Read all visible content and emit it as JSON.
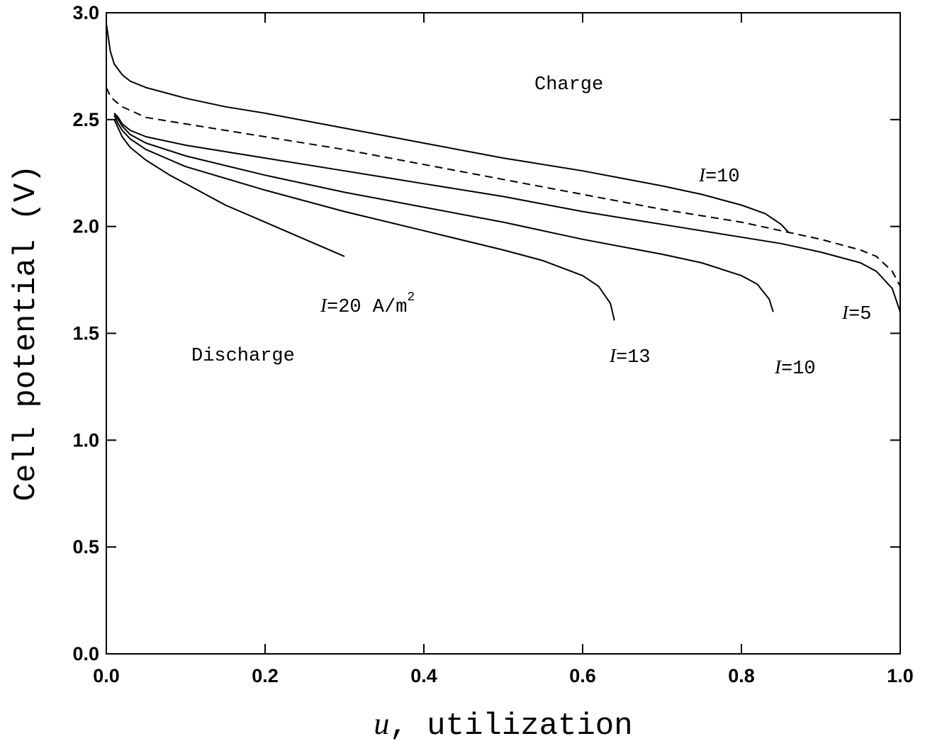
{
  "chart_data": {
    "type": "line",
    "title": "",
    "xlabel_var": "u",
    "xlabel_text": ", utilization",
    "ylabel": "Cell potential (V)",
    "xlim": [
      0.0,
      1.0
    ],
    "ylim": [
      0.0,
      3.0
    ],
    "xticks": [
      "0.0",
      "0.2",
      "0.4",
      "0.6",
      "0.8",
      "1.0"
    ],
    "yticks": [
      "0.0",
      "0.5",
      "1.0",
      "1.5",
      "2.0",
      "2.5",
      "3.0"
    ],
    "grid": false,
    "series": [
      {
        "mode": "charge",
        "current": 10,
        "dashed": false,
        "x": [
          0.0,
          0.005,
          0.01,
          0.02,
          0.03,
          0.05,
          0.08,
          0.1,
          0.15,
          0.2,
          0.3,
          0.4,
          0.5,
          0.6,
          0.7,
          0.75,
          0.8,
          0.83,
          0.85,
          0.86
        ],
        "y": [
          2.95,
          2.82,
          2.76,
          2.71,
          2.68,
          2.65,
          2.62,
          2.6,
          2.56,
          2.53,
          2.46,
          2.39,
          2.32,
          2.26,
          2.19,
          2.15,
          2.1,
          2.06,
          2.01,
          1.97
        ]
      },
      {
        "mode": "equilibrium",
        "current": null,
        "dashed": true,
        "x": [
          0.0,
          0.005,
          0.01,
          0.02,
          0.05,
          0.1,
          0.2,
          0.3,
          0.4,
          0.5,
          0.6,
          0.7,
          0.8,
          0.85,
          0.9,
          0.95,
          0.97,
          0.99,
          1.0
        ],
        "y": [
          2.65,
          2.61,
          2.59,
          2.56,
          2.51,
          2.48,
          2.42,
          2.36,
          2.29,
          2.22,
          2.15,
          2.08,
          2.02,
          1.98,
          1.94,
          1.89,
          1.86,
          1.79,
          1.72
        ]
      },
      {
        "mode": "discharge",
        "current": 5,
        "dashed": false,
        "x": [
          0.01,
          0.015,
          0.02,
          0.03,
          0.05,
          0.1,
          0.2,
          0.3,
          0.4,
          0.5,
          0.6,
          0.7,
          0.8,
          0.85,
          0.9,
          0.95,
          0.97,
          0.99,
          1.0
        ],
        "y": [
          2.53,
          2.51,
          2.48,
          2.45,
          2.42,
          2.38,
          2.32,
          2.26,
          2.2,
          2.14,
          2.07,
          2.01,
          1.95,
          1.92,
          1.88,
          1.83,
          1.79,
          1.71,
          1.6
        ]
      },
      {
        "mode": "discharge",
        "current": 10,
        "dashed": false,
        "x": [
          0.01,
          0.015,
          0.02,
          0.03,
          0.05,
          0.1,
          0.2,
          0.3,
          0.4,
          0.5,
          0.6,
          0.7,
          0.75,
          0.8,
          0.82,
          0.835,
          0.84
        ],
        "y": [
          2.53,
          2.5,
          2.47,
          2.43,
          2.39,
          2.33,
          2.24,
          2.16,
          2.09,
          2.02,
          1.94,
          1.87,
          1.83,
          1.77,
          1.73,
          1.66,
          1.6
        ]
      },
      {
        "mode": "discharge",
        "current": 13,
        "dashed": false,
        "x": [
          0.01,
          0.015,
          0.02,
          0.03,
          0.05,
          0.1,
          0.2,
          0.3,
          0.4,
          0.5,
          0.55,
          0.6,
          0.62,
          0.635,
          0.64
        ],
        "y": [
          2.52,
          2.48,
          2.45,
          2.41,
          2.36,
          2.28,
          2.17,
          2.07,
          1.98,
          1.89,
          1.84,
          1.77,
          1.72,
          1.64,
          1.56
        ]
      },
      {
        "mode": "discharge",
        "current": 20,
        "dashed": false,
        "x": [
          0.01,
          0.015,
          0.02,
          0.03,
          0.05,
          0.08,
          0.1,
          0.15,
          0.2,
          0.25,
          0.3
        ],
        "y": [
          2.5,
          2.46,
          2.42,
          2.37,
          2.31,
          2.24,
          2.2,
          2.1,
          2.02,
          1.94,
          1.86
        ]
      }
    ]
  },
  "annotations": {
    "charge_label": "Charge",
    "discharge_label": "Discharge",
    "i_symbol": "I",
    "i20_value": "=20 A/m",
    "i20_sup": "2",
    "i13_value": "=13",
    "i10_discharge_value": "=10",
    "i5_value": "=5",
    "i10_charge_value": "=10"
  }
}
